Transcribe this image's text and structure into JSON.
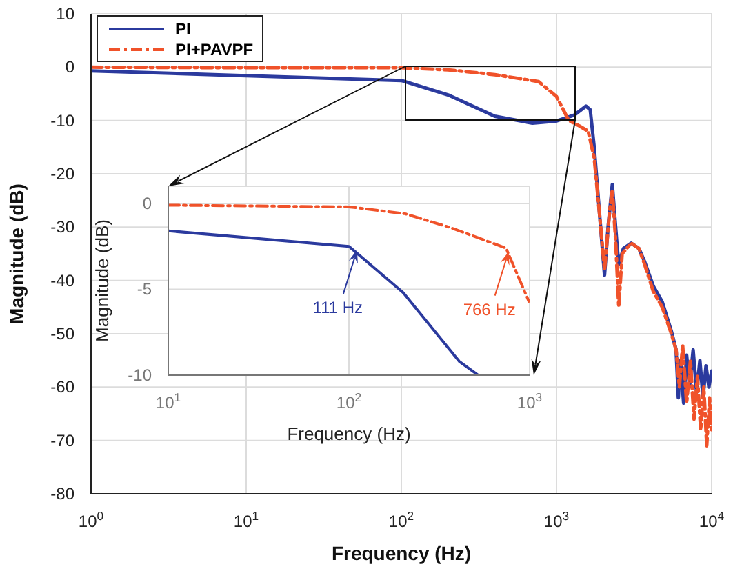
{
  "chart_data": [
    {
      "type": "line",
      "xlabel": "Frequency  (Hz)",
      "ylabel": "Magnitude (dB)",
      "log": "x",
      "grid": true,
      "legend": "top left",
      "marker": "none",
      "xlim": [
        1,
        10000
      ],
      "xticks": [
        {
          "value": 1,
          "label": "10$^{0}$"
        },
        {
          "value": 10,
          "label": "10$^{1}$"
        },
        {
          "value": 100,
          "label": "10$^{2}$"
        },
        {
          "value": 1000,
          "label": "10$^{3}$"
        },
        {
          "value": 10000,
          "label": "10$^{4}$"
        }
      ],
      "ylim": [
        -80,
        10
      ],
      "yticks": [
        -80,
        -70,
        -60,
        -50,
        -40,
        -30,
        -20,
        -10,
        0,
        10
      ],
      "series": [
        {
          "name": "PI",
          "color": "#2b3a9e",
          "line_style": "solid",
          "x": [
            1,
            10,
            100,
            200,
            400,
            700,
            1000,
            1300,
            1550,
            1650,
            1750,
            1900,
            2040,
            2150,
            2290,
            2450,
            2520,
            2700,
            3030,
            3400,
            3700,
            4200,
            4800,
            5500,
            5900,
            6100,
            6300,
            6600,
            6900,
            7200,
            7600,
            8000,
            8400,
            8800,
            9200,
            9600,
            10000
          ],
          "values": [
            -0.7,
            -1.6,
            -2.5,
            -5.2,
            -9.2,
            -10.5,
            -10.1,
            -9,
            -7.3,
            -8,
            -15,
            -28,
            -39,
            -30,
            -22,
            -33,
            -37,
            -34,
            -33,
            -34,
            -36.5,
            -41,
            -44,
            -49.5,
            -53,
            -62,
            -55,
            -63,
            -54,
            -60,
            -53,
            -61,
            -55,
            -62,
            -56,
            -60,
            -57
          ]
        },
        {
          "name": "PI+PAVPF",
          "color": "#f0522a",
          "line_style": "dashdot",
          "x": [
            1,
            10,
            100,
            200,
            400,
            766,
            1000,
            1200,
            1400,
            1600,
            1750,
            1900,
            2040,
            2200,
            2290,
            2400,
            2520,
            2650,
            3030,
            3400,
            3700,
            4200,
            4800,
            5500,
            5900,
            6200,
            6500,
            6900,
            7300,
            7700,
            8100,
            8500,
            8900,
            9300,
            9700,
            10000
          ],
          "values": [
            0,
            -0.1,
            -0.1,
            -0.5,
            -1.4,
            -2.7,
            -5.5,
            -10,
            -11,
            -12,
            -17,
            -28,
            -38,
            -27,
            -23,
            -32,
            -45,
            -35,
            -33,
            -34,
            -37,
            -42,
            -45,
            -50,
            -53,
            -60,
            -52,
            -63,
            -55,
            -66,
            -58,
            -68,
            -60,
            -71,
            -62,
            -68
          ]
        }
      ]
    },
    {
      "type": "line",
      "xlabel": "Frequency  (Hz)",
      "ylabel": "Magnitude (dB)",
      "log": "x",
      "grid": true,
      "marker": "none",
      "xlim": [
        10,
        1000
      ],
      "xticks": [
        {
          "value": 10,
          "label": "10$^{1}$"
        },
        {
          "value": 100,
          "label": "10$^{2}$"
        },
        {
          "value": 1000,
          "label": "10$^{3}$"
        }
      ],
      "ylim": [
        -10,
        1
      ],
      "yticks": [
        -10,
        -5,
        0
      ],
      "series": [
        {
          "color": "#2b3a9e",
          "line_style": "solid",
          "x": [
            10,
            100,
            200,
            408,
            520
          ],
          "values": [
            -1.6,
            -2.5,
            -5.2,
            -9.2,
            -10
          ]
        },
        {
          "color": "#f0522a",
          "line_style": "dashdot",
          "x": [
            10,
            100,
            204,
            363,
            740,
            990
          ],
          "values": [
            -0.1,
            -0.2,
            -0.6,
            -1.4,
            -2.6,
            -5.7
          ]
        }
      ],
      "annotations": [
        {
          "text": "111 Hz",
          "x": 111,
          "y": -2.7
        },
        {
          "text": "766 Hz",
          "x": 766,
          "y": -2.8
        }
      ]
    }
  ]
}
